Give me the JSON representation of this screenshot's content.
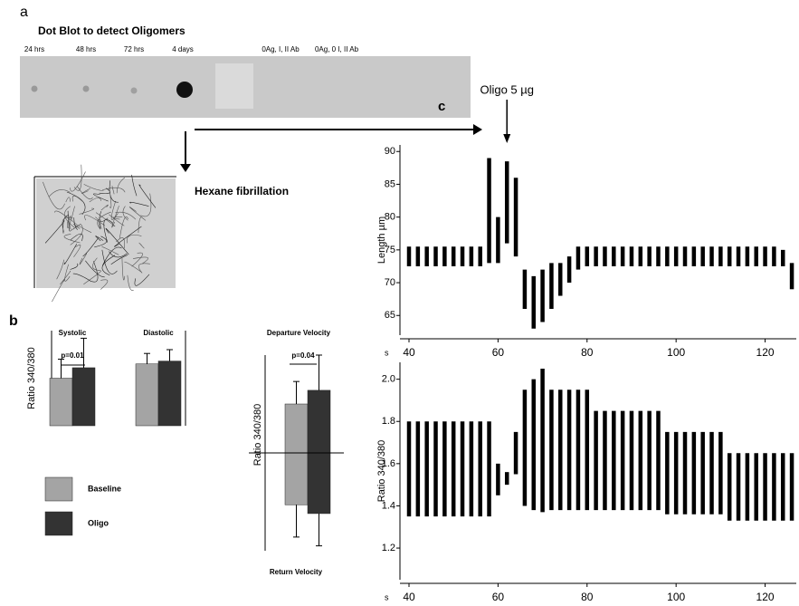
{
  "panel_labels": [
    "a",
    "b",
    "c"
  ],
  "dot_blot": {
    "title": "Dot Blot to detect Oligomers",
    "lanes": [
      "24 hrs",
      "48 hrs",
      "72 hrs",
      "4 days",
      "0Ag, I, II  Ab",
      "0Ag, 0 I, II  Ab"
    ]
  },
  "fibrillation_label": "Hexane fibrillation",
  "chart_data": [
    {
      "type": "bar",
      "categories": [
        "Systolic",
        "Diastolic"
      ],
      "y_label": "Ratio 340/380",
      "annotation": "p=0.01",
      "ylim": [
        0,
        10
      ],
      "series": [
        {
          "name": "Baseline",
          "color": "#a4a4a4",
          "values": [
            5.0,
            6.5
          ],
          "errors": [
            2.0,
            1.1
          ]
        },
        {
          "name": "Oligo",
          "color": "#333333",
          "values": [
            6.1,
            6.8
          ],
          "errors": [
            3.1,
            1.2
          ]
        }
      ]
    },
    {
      "type": "diverging_bar",
      "title_top": "Departure Velocity",
      "title_bottom": "Return Velocity",
      "y_label": "Ratio 340/380",
      "annotation": "p=0.04",
      "ylim": [
        -10,
        10
      ],
      "series": [
        {
          "color": "#a4a4a4",
          "values": [
            5.0,
            -5.3
          ],
          "errors": [
            2.3,
            3.3
          ]
        },
        {
          "color": "#333333",
          "values": [
            6.4,
            -6.2
          ],
          "errors": [
            3.6,
            3.3
          ]
        }
      ]
    },
    {
      "type": "band",
      "y_label": "Length µm",
      "x_label": "s",
      "annotation": "Oligo 5 µg",
      "annotation_x": 62,
      "color": "#000000",
      "xlim": [
        40,
        127
      ],
      "ylim": [
        62,
        91
      ],
      "xticks": [
        40,
        60,
        80,
        100,
        120
      ],
      "yticks": [
        65,
        70,
        75,
        80,
        85,
        90
      ],
      "x": [
        40,
        42,
        44,
        46,
        48,
        50,
        52,
        54,
        56,
        58,
        60,
        62,
        64,
        66,
        68,
        70,
        72,
        74,
        76,
        78,
        80,
        82,
        84,
        86,
        88,
        90,
        92,
        94,
        96,
        98,
        100,
        102,
        104,
        106,
        108,
        110,
        112,
        114,
        116,
        118,
        120,
        122,
        124,
        126
      ],
      "upper": [
        75.5,
        75.5,
        75.5,
        75.5,
        75.5,
        75.5,
        75.5,
        75.5,
        75.5,
        89,
        80,
        88.5,
        86,
        72,
        71,
        72,
        73,
        73,
        74,
        75.5,
        75.5,
        75.5,
        75.5,
        75.5,
        75.5,
        75.5,
        75.5,
        75.5,
        75.5,
        75.5,
        75.5,
        75.5,
        75.5,
        75.5,
        75.5,
        75.5,
        75.5,
        75.5,
        75.5,
        75.5,
        75.5,
        75.5,
        75,
        73
      ],
      "lower": [
        72.5,
        72.5,
        72.5,
        72.5,
        72.5,
        72.5,
        72.5,
        72.5,
        72.5,
        73,
        73,
        76,
        74,
        66,
        63,
        64,
        66,
        68,
        70,
        72,
        72.5,
        72.5,
        72.5,
        72.5,
        72.5,
        72.5,
        72.5,
        72.5,
        72.5,
        72.5,
        72.5,
        72.5,
        72.5,
        72.5,
        72.5,
        72.5,
        72.5,
        72.5,
        72.5,
        72.5,
        72.5,
        72.5,
        72.5,
        69
      ]
    },
    {
      "type": "band",
      "y_label": "Ratio 340/380",
      "x_label": "s",
      "color": "#000000",
      "xlim": [
        40,
        127
      ],
      "ylim": [
        1.05,
        2.08
      ],
      "xticks": [
        40,
        60,
        80,
        100,
        120
      ],
      "yticks": [
        1.2,
        1.4,
        1.6,
        1.8,
        {
          "value": 2,
          "label": "2.0"
        }
      ],
      "x": [
        40,
        42,
        44,
        46,
        48,
        50,
        52,
        54,
        56,
        58,
        60,
        62,
        64,
        66,
        68,
        70,
        72,
        74,
        76,
        78,
        80,
        82,
        84,
        86,
        88,
        90,
        92,
        94,
        96,
        98,
        100,
        102,
        104,
        106,
        108,
        110,
        112,
        114,
        116,
        118,
        120,
        122,
        124,
        126
      ],
      "upper": [
        1.8,
        1.8,
        1.8,
        1.8,
        1.8,
        1.8,
        1.8,
        1.8,
        1.8,
        1.8,
        1.6,
        1.56,
        1.75,
        1.95,
        2.0,
        2.05,
        1.95,
        1.95,
        1.95,
        1.95,
        1.95,
        1.85,
        1.85,
        1.85,
        1.85,
        1.85,
        1.85,
        1.85,
        1.85,
        1.75,
        1.75,
        1.75,
        1.75,
        1.75,
        1.75,
        1.75,
        1.65,
        1.65,
        1.65,
        1.65,
        1.65,
        1.65,
        1.65,
        1.65
      ],
      "lower": [
        1.35,
        1.35,
        1.35,
        1.35,
        1.35,
        1.35,
        1.35,
        1.35,
        1.35,
        1.35,
        1.45,
        1.5,
        1.55,
        1.4,
        1.38,
        1.37,
        1.38,
        1.38,
        1.38,
        1.38,
        1.38,
        1.38,
        1.38,
        1.38,
        1.38,
        1.38,
        1.38,
        1.38,
        1.38,
        1.36,
        1.36,
        1.36,
        1.36,
        1.36,
        1.36,
        1.36,
        1.33,
        1.33,
        1.33,
        1.33,
        1.33,
        1.33,
        1.33,
        1.33
      ]
    }
  ]
}
